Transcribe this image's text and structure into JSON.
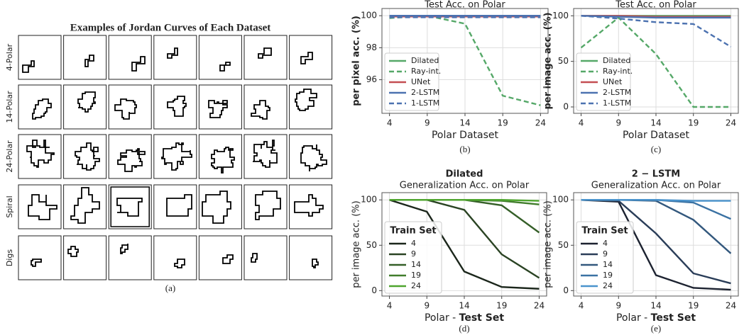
{
  "panel_a": {
    "title": "Examples of Jordan Curves of Each Dataset",
    "rows": [
      "4-Polar",
      "14-Polar",
      "24-Polar",
      "Spiral",
      "Digs"
    ],
    "caption": "(a)"
  },
  "chart_data": [
    {
      "type": "line",
      "title": "Test Acc. on Polar",
      "ylabel": "per pixel acc. (%)",
      "xlabel": [
        "Polar Dataset"
      ],
      "caption": "(b)",
      "x": [
        4,
        9,
        14,
        19,
        24
      ],
      "xlim": [
        3,
        25
      ],
      "xticks": [
        4,
        9,
        14,
        19,
        24
      ],
      "ylim": [
        93.9,
        100.45
      ],
      "yticks": [
        96,
        98,
        100
      ],
      "grid": true,
      "legend": "lower left",
      "series": [
        {
          "name": "Dilated",
          "color": "#55a868",
          "linestyle": "solid",
          "values": [
            100,
            100,
            100,
            100,
            100
          ]
        },
        {
          "name": "Ray-int.",
          "color": "#55a868",
          "linestyle": "dashed",
          "values": [
            99.85,
            100,
            99.5,
            95,
            94.4
          ]
        },
        {
          "name": "UNet",
          "color": "#c44e52",
          "linestyle": "solid",
          "values": [
            99.95,
            99.95,
            99.95,
            99.95,
            99.95
          ]
        },
        {
          "name": "2-LSTM",
          "color": "#4c72b0",
          "linestyle": "solid",
          "values": [
            100,
            100,
            100,
            100,
            100
          ]
        },
        {
          "name": "1-LSTM",
          "color": "#4c72b0",
          "linestyle": "dashed",
          "values": [
            99.9,
            99.9,
            99.9,
            99.9,
            99.9
          ]
        }
      ]
    },
    {
      "type": "line",
      "title": "Test Acc. on Polar",
      "ylabel": "per image acc. (%)",
      "xlabel": [
        "Polar Dataset"
      ],
      "caption": "(c)",
      "x": [
        4,
        9,
        14,
        19,
        24
      ],
      "xlim": [
        3,
        25
      ],
      "xticks": [
        4,
        9,
        14,
        19,
        24
      ],
      "ylim": [
        -7,
        108
      ],
      "yticks": [
        0,
        50,
        100
      ],
      "grid": true,
      "legend": "lower left",
      "series": [
        {
          "name": "Dilated",
          "color": "#55a868",
          "linestyle": "solid",
          "values": [
            100,
            100,
            100,
            100,
            100
          ]
        },
        {
          "name": "Ray-int.",
          "color": "#55a868",
          "linestyle": "dashed",
          "values": [
            65,
            98,
            58,
            0,
            0
          ]
        },
        {
          "name": "UNet",
          "color": "#c44e52",
          "linestyle": "solid",
          "values": [
            100,
            100,
            99,
            99,
            99
          ]
        },
        {
          "name": "2-LSTM",
          "color": "#4c72b0",
          "linestyle": "solid",
          "values": [
            100,
            99,
            98,
            98,
            98
          ]
        },
        {
          "name": "1-LSTM",
          "color": "#4c72b0",
          "linestyle": "dashed",
          "values": [
            100,
            97,
            93,
            91,
            66
          ]
        }
      ]
    },
    {
      "type": "line",
      "title": "Dilated",
      "subtitle": "Generalization Acc. on Polar",
      "ylabel": "per image acc. (%)",
      "xlabel": [
        "Polar - ",
        "Test Set"
      ],
      "caption": "(d)",
      "x": [
        4,
        9,
        14,
        19,
        24
      ],
      "xlim": [
        3,
        25
      ],
      "xticks": [
        4,
        9,
        14,
        19,
        24
      ],
      "ylim": [
        -6,
        108
      ],
      "yticks": [
        0,
        50,
        100
      ],
      "grid": true,
      "legend": "lower left",
      "legend_title": "Train Set",
      "series": [
        {
          "name": "4",
          "color": "#1b261b",
          "linestyle": "solid",
          "values": [
            100,
            87,
            21,
            4,
            2
          ]
        },
        {
          "name": "9",
          "color": "#2a4323",
          "linestyle": "solid",
          "values": [
            100,
            100,
            89,
            40,
            14
          ]
        },
        {
          "name": "14",
          "color": "#355f28",
          "linestyle": "solid",
          "values": [
            100,
            100,
            100,
            94,
            64
          ]
        },
        {
          "name": "19",
          "color": "#417d2c",
          "linestyle": "solid",
          "values": [
            100,
            100,
            100,
            99,
            95
          ]
        },
        {
          "name": "24",
          "color": "#4fa52f",
          "linestyle": "solid",
          "values": [
            100,
            100,
            100,
            100,
            99
          ]
        }
      ]
    },
    {
      "type": "line",
      "title": "2 − LSTM",
      "subtitle": "Generalization Acc. on Polar",
      "ylabel": "per image acc. (%)",
      "xlabel": [
        "Polar - ",
        "Test Set"
      ],
      "caption": "(e)",
      "x": [
        4,
        9,
        14,
        19,
        24
      ],
      "xlim": [
        3,
        25
      ],
      "xticks": [
        4,
        9,
        14,
        19,
        24
      ],
      "ylim": [
        -6,
        108
      ],
      "yticks": [
        0,
        50,
        100
      ],
      "grid": true,
      "legend": "lower left",
      "legend_title": "Train Set",
      "series": [
        {
          "name": "4",
          "color": "#1c2230",
          "linestyle": "solid",
          "values": [
            100,
            98,
            17,
            3,
            1
          ]
        },
        {
          "name": "9",
          "color": "#2a3d58",
          "linestyle": "solid",
          "values": [
            100,
            99,
            63,
            19,
            8
          ]
        },
        {
          "name": "14",
          "color": "#33587d",
          "linestyle": "solid",
          "values": [
            100,
            100,
            99,
            78,
            41
          ]
        },
        {
          "name": "19",
          "color": "#3b72a3",
          "linestyle": "solid",
          "values": [
            100,
            100,
            100,
            97,
            79
          ]
        },
        {
          "name": "24",
          "color": "#4a93cc",
          "linestyle": "solid",
          "values": [
            100,
            100,
            100,
            99,
            99
          ]
        }
      ]
    }
  ]
}
